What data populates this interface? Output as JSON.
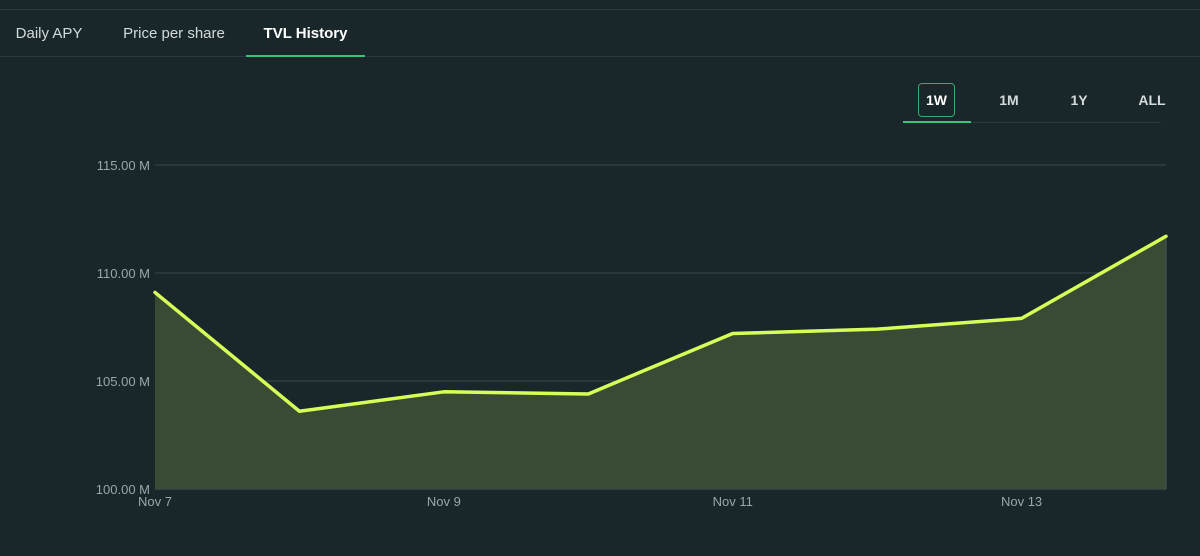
{
  "tabs": [
    {
      "label": "Daily APY",
      "active": false
    },
    {
      "label": "Price per share",
      "active": false
    },
    {
      "label": "TVL History",
      "active": true
    }
  ],
  "ranges": [
    {
      "label": "1W",
      "active": true
    },
    {
      "label": "1M",
      "active": false
    },
    {
      "label": "1Y",
      "active": false
    },
    {
      "label": "ALL",
      "active": false
    }
  ],
  "colors": {
    "background": "#19272a",
    "accent_green": "#37c57c",
    "line": "#d7ff57",
    "area_fill": "#3a4b35",
    "grid": "#3b4a4b"
  },
  "chart_data": {
    "type": "area",
    "title": "",
    "xlabel": "",
    "ylabel": "",
    "x": [
      "Nov 7",
      "Nov 8",
      "Nov 9",
      "Nov 10",
      "Nov 11",
      "Nov 12",
      "Nov 13",
      "Nov 14"
    ],
    "x_tick_labels": [
      "Nov 7",
      "Nov 9",
      "Nov 11",
      "Nov 13"
    ],
    "y_tick_labels": [
      "100.00 M",
      "105.00 M",
      "110.00 M",
      "115.00 M"
    ],
    "y_ticks": [
      100,
      105,
      110,
      115
    ],
    "ylim": [
      100,
      116.5
    ],
    "grid": true,
    "unit": "M",
    "series": [
      {
        "values": [
          109.1,
          103.6,
          104.5,
          104.4,
          107.2,
          107.4,
          107.9,
          111.7
        ]
      }
    ]
  }
}
